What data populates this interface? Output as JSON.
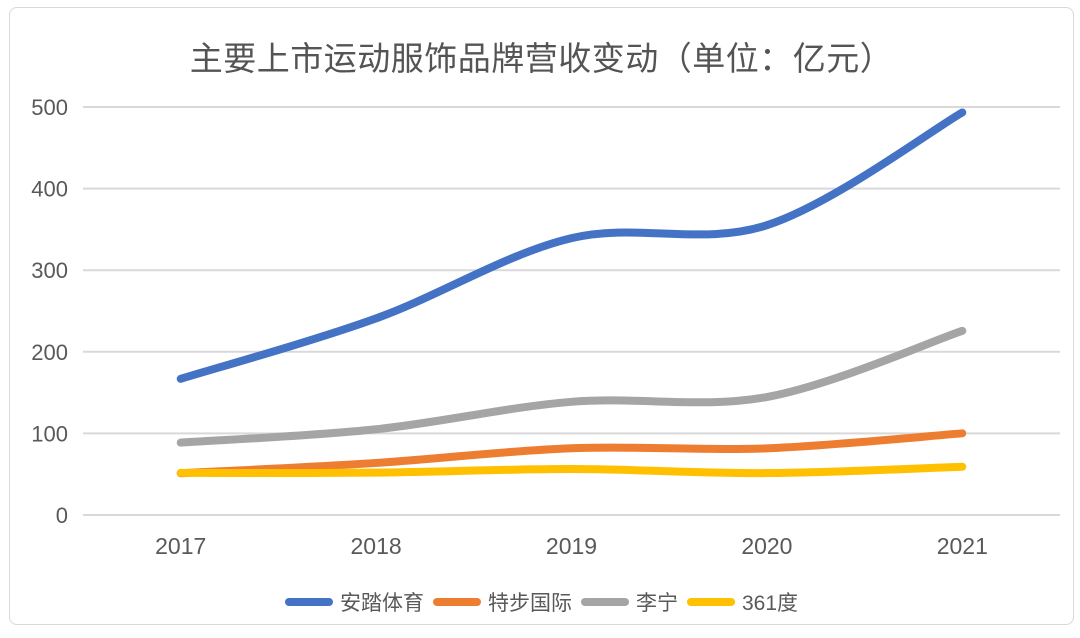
{
  "title": "主要上市运动服饰品牌营收变动（单位：亿元）",
  "colors": {
    "series_blue": "#4472C4",
    "series_orange": "#ED7D31",
    "series_gray": "#A5A5A5",
    "series_yellow": "#FFC000",
    "gridline": "#D9D9D9",
    "title_text": "#545454",
    "tick_text": "#595959",
    "card_border": "#D9D9D9"
  },
  "chart_data": {
    "type": "line",
    "smooth": true,
    "title": "主要上市运动服饰品牌营收变动（单位：亿元）",
    "categories": [
      "2017",
      "2018",
      "2019",
      "2020",
      "2021"
    ],
    "series": [
      {
        "id": "anta",
        "name": "安踏体育",
        "color": "#4472C4",
        "values": [
          166.9,
          241.0,
          339.3,
          355.1,
          493.3
        ]
      },
      {
        "id": "xtep",
        "name": "特步国际",
        "color": "#ED7D31",
        "values": [
          51.1,
          63.8,
          81.8,
          81.7,
          100.1
        ]
      },
      {
        "id": "lining",
        "name": "李宁",
        "color": "#A5A5A5",
        "values": [
          88.7,
          105.1,
          138.7,
          144.6,
          225.7
        ]
      },
      {
        "id": "361du",
        "name": "361度",
        "color": "#FFC000",
        "values": [
          51.6,
          51.9,
          56.3,
          51.4,
          59.1
        ]
      }
    ],
    "ylim": [
      0,
      500
    ],
    "yticks": [
      0,
      100,
      200,
      300,
      400,
      500
    ],
    "xlabel": "",
    "ylabel": "",
    "grid": "horizontal",
    "legend_position": "bottom"
  }
}
